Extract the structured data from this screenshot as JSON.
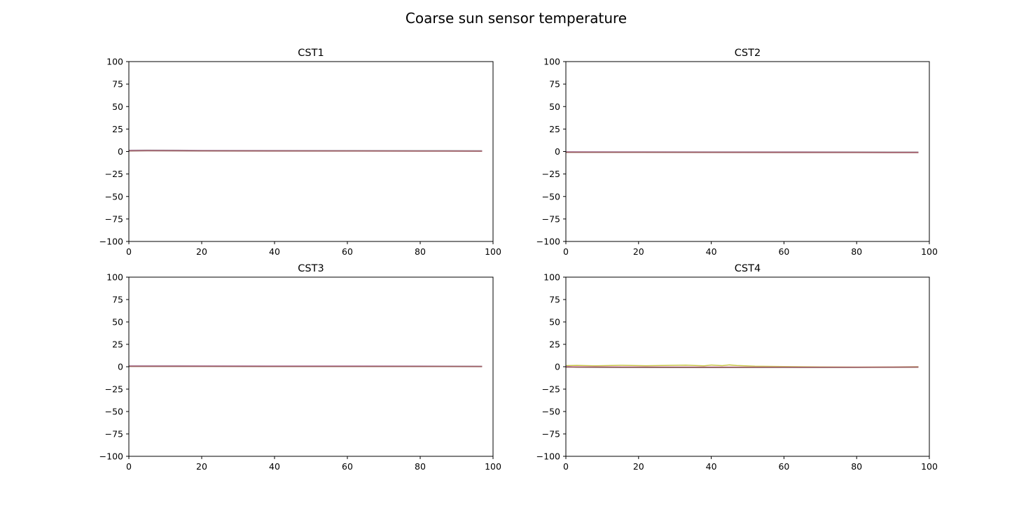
{
  "figure_title": "Coarse sun sensor temperature",
  "chart_data": [
    {
      "type": "line",
      "title": "CST1",
      "xlabel": "",
      "ylabel": "",
      "xlim": [
        0,
        100
      ],
      "ylim": [
        -100,
        100
      ],
      "x_ticks": [
        "0",
        "20",
        "40",
        "60",
        "80",
        "100"
      ],
      "y_ticks": [
        "100",
        "75",
        "50",
        "25",
        "0",
        "−25",
        "−50",
        "−75",
        "−100"
      ],
      "grid": false,
      "series": [
        {
          "color": "#7f7f7f",
          "x": [
            0,
            5,
            20,
            40,
            60,
            80,
            97
          ],
          "y": [
            1.5,
            1.6,
            1.3,
            1.2,
            1.1,
            1.0,
            0.9
          ]
        },
        {
          "color": "#e377c2",
          "x": [
            0,
            5,
            20,
            40,
            60,
            80,
            97
          ],
          "y": [
            1.0,
            1.1,
            0.9,
            0.8,
            0.7,
            0.6,
            0.5
          ]
        },
        {
          "color": "#8c564b",
          "x": [
            0,
            5,
            20,
            40,
            60,
            80,
            97
          ],
          "y": [
            0.6,
            0.8,
            0.6,
            0.5,
            0.5,
            0.4,
            0.3
          ]
        }
      ]
    },
    {
      "type": "line",
      "title": "CST2",
      "xlabel": "",
      "ylabel": "",
      "xlim": [
        0,
        100
      ],
      "ylim": [
        -100,
        100
      ],
      "x_ticks": [
        "0",
        "20",
        "40",
        "60",
        "80",
        "100"
      ],
      "y_ticks": [
        "100",
        "75",
        "50",
        "25",
        "0",
        "−25",
        "−50",
        "−75",
        "−100"
      ],
      "grid": false,
      "series": [
        {
          "color": "#7f7f7f",
          "x": [
            0,
            20,
            40,
            60,
            80,
            97
          ],
          "y": [
            -0.2,
            -0.3,
            -0.4,
            -0.4,
            -0.5,
            -0.6
          ]
        },
        {
          "color": "#e377c2",
          "x": [
            0,
            20,
            40,
            60,
            80,
            97
          ],
          "y": [
            -0.6,
            -0.7,
            -0.8,
            -0.8,
            -0.9,
            -1.0
          ]
        },
        {
          "color": "#8c564b",
          "x": [
            0,
            20,
            40,
            60,
            80,
            97
          ],
          "y": [
            -1.0,
            -1.0,
            -1.1,
            -1.2,
            -1.2,
            -1.3
          ]
        }
      ]
    },
    {
      "type": "line",
      "title": "CST3",
      "xlabel": "",
      "ylabel": "",
      "xlim": [
        0,
        100
      ],
      "ylim": [
        -100,
        100
      ],
      "x_ticks": [
        "0",
        "20",
        "40",
        "60",
        "80",
        "100"
      ],
      "y_ticks": [
        "100",
        "75",
        "50",
        "25",
        "0",
        "−25",
        "−50",
        "−75",
        "−100"
      ],
      "grid": false,
      "series": [
        {
          "color": "#7f7f7f",
          "x": [
            0,
            20,
            40,
            60,
            80,
            97
          ],
          "y": [
            1.1,
            1.0,
            0.9,
            0.9,
            0.8,
            0.6
          ]
        },
        {
          "color": "#e377c2",
          "x": [
            0,
            20,
            40,
            60,
            80,
            97
          ],
          "y": [
            0.7,
            0.7,
            0.6,
            0.6,
            0.5,
            0.3
          ]
        },
        {
          "color": "#8c564b",
          "x": [
            0,
            20,
            40,
            60,
            80,
            97
          ],
          "y": [
            0.3,
            0.3,
            0.2,
            0.2,
            0.2,
            0.1
          ]
        }
      ]
    },
    {
      "type": "line",
      "title": "CST4",
      "xlabel": "",
      "ylabel": "",
      "xlim": [
        0,
        100
      ],
      "ylim": [
        -100,
        100
      ],
      "x_ticks": [
        "0",
        "20",
        "40",
        "60",
        "80",
        "100"
      ],
      "y_ticks": [
        "100",
        "75",
        "50",
        "25",
        "0",
        "−25",
        "−50",
        "−75",
        "−100"
      ],
      "grid": false,
      "series": [
        {
          "color": "#bcbd22",
          "x": [
            0,
            3,
            8,
            15,
            22,
            28,
            33,
            38,
            40,
            43,
            45,
            47,
            52,
            60,
            70,
            80,
            90,
            97
          ],
          "y": [
            1.2,
            1.5,
            1.0,
            1.6,
            1.1,
            1.5,
            1.8,
            1.0,
            1.9,
            1.2,
            2.0,
            1.4,
            0.6,
            0.2,
            -0.2,
            -0.4,
            -0.2,
            0.1
          ]
        },
        {
          "color": "#7f7f7f",
          "x": [
            0,
            3,
            10,
            20,
            30,
            40,
            50,
            60,
            70,
            80,
            90,
            97
          ],
          "y": [
            0.5,
            -0.6,
            -0.8,
            -0.9,
            -1.0,
            -1.0,
            -0.9,
            -0.8,
            -0.8,
            -0.7,
            -0.5,
            -0.2
          ]
        },
        {
          "color": "#e377c2",
          "x": [
            0,
            10,
            20,
            30,
            40,
            50,
            60,
            70,
            80,
            90,
            97
          ],
          "y": [
            0.0,
            -0.1,
            -0.2,
            -0.3,
            -0.3,
            -0.4,
            -0.4,
            -0.5,
            -0.5,
            -0.4,
            -0.3
          ]
        },
        {
          "color": "#8c564b",
          "x": [
            0,
            10,
            20,
            30,
            40,
            50,
            60,
            70,
            80,
            90,
            97
          ],
          "y": [
            -0.5,
            -0.5,
            -0.6,
            -0.6,
            -0.7,
            -0.7,
            -0.7,
            -0.8,
            -0.8,
            -0.7,
            -0.6
          ]
        }
      ]
    }
  ]
}
